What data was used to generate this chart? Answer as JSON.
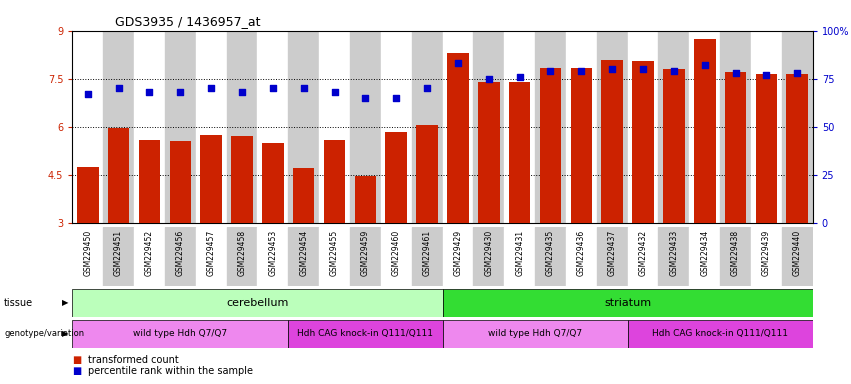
{
  "title": "GDS3935 / 1436957_at",
  "samples": [
    "GSM229450",
    "GSM229451",
    "GSM229452",
    "GSM229456",
    "GSM229457",
    "GSM229458",
    "GSM229453",
    "GSM229454",
    "GSM229455",
    "GSM229459",
    "GSM229460",
    "GSM229461",
    "GSM229429",
    "GSM229430",
    "GSM229431",
    "GSM229435",
    "GSM229436",
    "GSM229437",
    "GSM229432",
    "GSM229433",
    "GSM229434",
    "GSM229438",
    "GSM229439",
    "GSM229440"
  ],
  "bar_values": [
    4.75,
    5.95,
    5.6,
    5.55,
    5.75,
    5.7,
    5.5,
    4.7,
    5.6,
    4.45,
    5.85,
    6.05,
    8.3,
    7.4,
    7.4,
    7.85,
    7.85,
    8.1,
    8.05,
    7.8,
    8.75,
    7.7,
    7.65,
    7.65
  ],
  "dot_values": [
    67,
    70,
    68,
    68,
    70,
    68,
    70,
    70,
    68,
    65,
    65,
    70,
    83,
    75,
    76,
    79,
    79,
    80,
    80,
    79,
    82,
    78,
    77,
    78
  ],
  "bar_color": "#cc2200",
  "dot_color": "#0000cc",
  "ymin": 3,
  "ymax": 9,
  "yticks": [
    3,
    4.5,
    6,
    7.5,
    9
  ],
  "ytick_labels": [
    "3",
    "4.5",
    "6",
    "7.5",
    "9"
  ],
  "y2min": 0,
  "y2max": 100,
  "y2ticks": [
    0,
    25,
    50,
    75,
    100
  ],
  "y2tick_labels": [
    "0",
    "25",
    "50",
    "75",
    "100%"
  ],
  "gridlines": [
    4.5,
    6.0,
    7.5
  ],
  "tissue_labels": [
    {
      "label": "cerebellum",
      "start": 0,
      "end": 12,
      "color": "#bbffbb"
    },
    {
      "label": "striatum",
      "start": 12,
      "end": 24,
      "color": "#33dd33"
    }
  ],
  "genotype_labels": [
    {
      "label": "wild type Hdh Q7/Q7",
      "start": 0,
      "end": 7,
      "color": "#ee88ee"
    },
    {
      "label": "Hdh CAG knock-in Q111/Q111",
      "start": 7,
      "end": 12,
      "color": "#dd44dd"
    },
    {
      "label": "wild type Hdh Q7/Q7",
      "start": 12,
      "end": 18,
      "color": "#ee88ee"
    },
    {
      "label": "Hdh CAG knock-in Q111/Q111",
      "start": 18,
      "end": 24,
      "color": "#dd44dd"
    }
  ],
  "legend_items": [
    {
      "label": "transformed count",
      "color": "#cc2200"
    },
    {
      "label": "percentile rank within the sample",
      "color": "#0000cc"
    }
  ],
  "background_color": "#ffffff",
  "plot_bg_color": "#ffffff",
  "xtick_bg_even": "#ffffff",
  "xtick_bg_odd": "#cccccc"
}
